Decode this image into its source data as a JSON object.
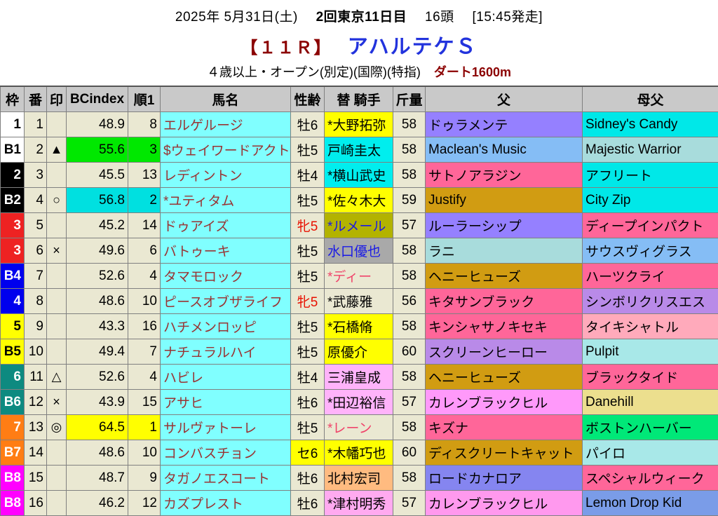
{
  "colors": {
    "title_red": "#8b0000",
    "title_blue": "#2233dd",
    "header_bg": "#c9c9c9",
    "cell_beige": "#eae8d2",
    "horse_cell_cyan": "#80ffff",
    "horse_text": "#993333",
    "border": "#808080"
  },
  "page": {
    "date_line": {
      "date": "2025年 5月31日(土)",
      "meeting": "2回東京11日目",
      "heads": "16頭",
      "start_time": "[15:45発走]"
    },
    "race_line": {
      "race_no": "【１１Ｒ】",
      "race_name": "アハルテケＳ"
    },
    "condition_line": {
      "conditions": "４歳以上・オープン(別定)(国際)(特指)",
      "track": "ダート1600m"
    }
  },
  "table": {
    "headers": [
      "枠",
      "番",
      "印",
      "BCindex",
      "順1",
      "馬名",
      "性齢",
      "替 騎手",
      "斤量",
      "父",
      "母父"
    ],
    "rows": [
      {
        "waku": {
          "text": "1",
          "bg": "#ffffff",
          "fg": "#000000"
        },
        "num": "1",
        "mark": "",
        "bcindex": {
          "value": "48.9",
          "bg": null
        },
        "rank": {
          "value": "8",
          "bg": null
        },
        "horse": "エルゲルージ",
        "sex_age": {
          "text": "牡6",
          "fg": null,
          "bg": null
        },
        "jockey": {
          "name": "*大野拓弥",
          "bg": "#ffff00",
          "fg": null
        },
        "weight": "58",
        "sire": {
          "name": "ドゥラメンテ",
          "bg": "#9580ff"
        },
        "damsire": {
          "name": "Sidney's Candy",
          "bg": "#00e8e8"
        }
      },
      {
        "waku": {
          "text": "B1",
          "bg": "#ffffff",
          "fg": "#000000"
        },
        "num": "2",
        "mark": "▲",
        "bcindex": {
          "value": "55.6",
          "bg": "#00e800"
        },
        "rank": {
          "value": "3",
          "bg": "#00e800"
        },
        "horse": "$ウェイワードアクト",
        "sex_age": {
          "text": "牡5",
          "fg": null,
          "bg": null
        },
        "jockey": {
          "name": "戸崎圭太",
          "bg": "#00eeee",
          "fg": null
        },
        "weight": "58",
        "sire": {
          "name": "Maclean's Music",
          "bg": "#85bdf5"
        },
        "damsire": {
          "name": "Majestic Warrior",
          "bg": "#a8dcdc"
        }
      },
      {
        "waku": {
          "text": "2",
          "bg": "#000000",
          "fg": "#ffffff"
        },
        "num": "3",
        "mark": "",
        "bcindex": {
          "value": "45.5",
          "bg": null
        },
        "rank": {
          "value": "13",
          "bg": null
        },
        "horse": "レディントン",
        "sex_age": {
          "text": "牡4",
          "fg": null,
          "bg": null
        },
        "jockey": {
          "name": "*横山武史",
          "bg": "#00eeee",
          "fg": null
        },
        "weight": "58",
        "sire": {
          "name": "サトノアラジン",
          "bg": "#ff6699"
        },
        "damsire": {
          "name": "アフリート",
          "bg": "#00e8e8"
        }
      },
      {
        "waku": {
          "text": "B2",
          "bg": "#000000",
          "fg": "#ffffff"
        },
        "num": "4",
        "mark": "○",
        "bcindex": {
          "value": "56.8",
          "bg": "#00e0e0"
        },
        "rank": {
          "value": "2",
          "bg": "#00e0e0"
        },
        "horse": "*ユティタム",
        "sex_age": {
          "text": "牡5",
          "fg": null,
          "bg": null
        },
        "jockey": {
          "name": "*佐々木大",
          "bg": "#ffff00",
          "fg": null
        },
        "weight": "59",
        "sire": {
          "name": "Justify",
          "bg": "#d19c12"
        },
        "damsire": {
          "name": "City Zip",
          "bg": "#00e8e8"
        }
      },
      {
        "waku": {
          "text": "3",
          "bg": "#ee2222",
          "fg": "#ffffff"
        },
        "num": "5",
        "mark": "",
        "bcindex": {
          "value": "45.2",
          "bg": null
        },
        "rank": {
          "value": "14",
          "bg": null
        },
        "horse": "ドゥアイズ",
        "sex_age": {
          "text": "牝5",
          "fg": "#e81000",
          "bg": null
        },
        "jockey": {
          "name": "*ルメール",
          "bg": "#b3b300",
          "fg": "#1919e6"
        },
        "weight": "57",
        "sire": {
          "name": "ルーラーシップ",
          "bg": "#9580ff"
        },
        "damsire": {
          "name": "ディープインパクト",
          "bg": "#ff6699"
        }
      },
      {
        "waku": {
          "text": "3",
          "bg": "#ee2222",
          "fg": "#ffffff"
        },
        "num": "6",
        "mark": "×",
        "bcindex": {
          "value": "49.6",
          "bg": null
        },
        "rank": {
          "value": "6",
          "bg": null
        },
        "horse": "バトゥーキ",
        "sex_age": {
          "text": "牡5",
          "fg": null,
          "bg": null
        },
        "jockey": {
          "name": "水口優也",
          "bg": "#a9a9a9",
          "fg": "#1919e6"
        },
        "weight": "58",
        "sire": {
          "name": "ラニ",
          "bg": "#a8dcdc"
        },
        "damsire": {
          "name": "サウスヴィグラス",
          "bg": "#85bdf5"
        }
      },
      {
        "waku": {
          "text": "B4",
          "bg": "#0000ee",
          "fg": "#ffffff"
        },
        "num": "7",
        "mark": "",
        "bcindex": {
          "value": "52.6",
          "bg": null
        },
        "rank": {
          "value": "4",
          "bg": null
        },
        "horse": "タマモロック",
        "sex_age": {
          "text": "牡5",
          "fg": null,
          "bg": null
        },
        "jockey": {
          "name": "*ディー",
          "bg": null,
          "fg": "#f0436a"
        },
        "weight": "58",
        "sire": {
          "name": "ヘニーヒューズ",
          "bg": "#d19c12"
        },
        "damsire": {
          "name": "ハーツクライ",
          "bg": "#ff6699"
        }
      },
      {
        "waku": {
          "text": "4",
          "bg": "#0000ee",
          "fg": "#ffffff"
        },
        "num": "8",
        "mark": "",
        "bcindex": {
          "value": "48.6",
          "bg": null
        },
        "rank": {
          "value": "10",
          "bg": null
        },
        "horse": "ピースオブザライフ",
        "sex_age": {
          "text": "牝5",
          "fg": "#e81000",
          "bg": null
        },
        "jockey": {
          "name": "*武藤雅",
          "bg": null,
          "fg": null
        },
        "weight": "56",
        "sire": {
          "name": "キタサンブラック",
          "bg": "#ff6699"
        },
        "damsire": {
          "name": "シンボリクリスエス",
          "bg": "#b98ae8"
        }
      },
      {
        "waku": {
          "text": "5",
          "bg": "#ffff00",
          "fg": "#000000"
        },
        "num": "9",
        "mark": "",
        "bcindex": {
          "value": "43.3",
          "bg": null
        },
        "rank": {
          "value": "16",
          "bg": null
        },
        "horse": "ハチメンロッピ",
        "sex_age": {
          "text": "牡5",
          "fg": null,
          "bg": null
        },
        "jockey": {
          "name": "*石橋脩",
          "bg": "#ffff00",
          "fg": null
        },
        "weight": "58",
        "sire": {
          "name": "キンシャサノキセキ",
          "bg": "#ff6699"
        },
        "damsire": {
          "name": "タイキシャトル",
          "bg": "#ffaabb"
        }
      },
      {
        "waku": {
          "text": "B5",
          "bg": "#ffff00",
          "fg": "#000000"
        },
        "num": "10",
        "mark": "",
        "bcindex": {
          "value": "49.4",
          "bg": null
        },
        "rank": {
          "value": "7",
          "bg": null
        },
        "horse": "ナチュラルハイ",
        "sex_age": {
          "text": "牡5",
          "fg": null,
          "bg": null
        },
        "jockey": {
          "name": "原優介",
          "bg": "#ffff00",
          "fg": null
        },
        "weight": "60",
        "sire": {
          "name": "スクリーンヒーロー",
          "bg": "#b98ae8"
        },
        "damsire": {
          "name": "Pulpit",
          "bg": "#a8e8e8"
        }
      },
      {
        "waku": {
          "text": "6",
          "bg": "#0d8a80",
          "fg": "#ffffff"
        },
        "num": "11",
        "mark": "△",
        "bcindex": {
          "value": "52.6",
          "bg": null
        },
        "rank": {
          "value": "4",
          "bg": null
        },
        "horse": "ハビレ",
        "sex_age": {
          "text": "牡4",
          "fg": null,
          "bg": null
        },
        "jockey": {
          "name": "三浦皇成",
          "bg": "#ffb3fa",
          "fg": null
        },
        "weight": "58",
        "sire": {
          "name": "ヘニーヒューズ",
          "bg": "#d19c12"
        },
        "damsire": {
          "name": "ブラックタイド",
          "bg": "#ff6699"
        }
      },
      {
        "waku": {
          "text": "B6",
          "bg": "#0d8a80",
          "fg": "#ffffff"
        },
        "num": "12",
        "mark": "×",
        "bcindex": {
          "value": "43.9",
          "bg": null
        },
        "rank": {
          "value": "15",
          "bg": null
        },
        "horse": "アサヒ",
        "sex_age": {
          "text": "牡6",
          "fg": null,
          "bg": null
        },
        "jockey": {
          "name": "*田辺裕信",
          "bg": "#ffb3fa",
          "fg": null
        },
        "weight": "57",
        "sire": {
          "name": "カレンブラックヒル",
          "bg": "#ff99fa"
        },
        "damsire": {
          "name": "Danehill",
          "bg": "#ecdf8e"
        }
      },
      {
        "waku": {
          "text": "7",
          "bg": "#ff7d14",
          "fg": "#ffffff"
        },
        "num": "13",
        "mark": "◎",
        "bcindex": {
          "value": "64.5",
          "bg": "#ffff00"
        },
        "rank": {
          "value": "1",
          "bg": "#ffff00"
        },
        "horse": "サルヴァトーレ",
        "sex_age": {
          "text": "牡5",
          "fg": null,
          "bg": null
        },
        "jockey": {
          "name": "*レーン",
          "bg": null,
          "fg": "#f0436a"
        },
        "weight": "58",
        "sire": {
          "name": "キズナ",
          "bg": "#ff6699"
        },
        "damsire": {
          "name": "ボストンハーバー",
          "bg": "#00e878"
        }
      },
      {
        "waku": {
          "text": "B7",
          "bg": "#ff7d14",
          "fg": "#ffffff"
        },
        "num": "14",
        "mark": "",
        "bcindex": {
          "value": "48.6",
          "bg": null
        },
        "rank": {
          "value": "10",
          "bg": null
        },
        "horse": "コンバスチョン",
        "sex_age": {
          "text": "セ6",
          "fg": null,
          "bg": "#ffff00"
        },
        "jockey": {
          "name": "*木幡巧也",
          "bg": "#ffff00",
          "fg": null
        },
        "weight": "60",
        "sire": {
          "name": "ディスクリートキャット",
          "bg": "#d19c12"
        },
        "damsire": {
          "name": "パイロ",
          "bg": "#a8e8e8"
        }
      },
      {
        "waku": {
          "text": "B8",
          "bg": "#ff00ff",
          "fg": "#ffffff"
        },
        "num": "15",
        "mark": "",
        "bcindex": {
          "value": "48.7",
          "bg": null
        },
        "rank": {
          "value": "9",
          "bg": null
        },
        "horse": "タガノエスコート",
        "sex_age": {
          "text": "牡6",
          "fg": null,
          "bg": null
        },
        "jockey": {
          "name": "北村宏司",
          "bg": "#ffbb80",
          "fg": null
        },
        "weight": "58",
        "sire": {
          "name": "ロードカナロア",
          "bg": "#8585f0"
        },
        "damsire": {
          "name": "スペシャルウィーク",
          "bg": "#ff6699"
        }
      },
      {
        "waku": {
          "text": "B8",
          "bg": "#ff00ff",
          "fg": "#ffffff"
        },
        "num": "16",
        "mark": "",
        "bcindex": {
          "value": "46.2",
          "bg": null
        },
        "rank": {
          "value": "12",
          "bg": null
        },
        "horse": "カズプレスト",
        "sex_age": {
          "text": "牡6",
          "fg": null,
          "bg": null
        },
        "jockey": {
          "name": "*津村明秀",
          "bg": "#ffaaf0",
          "fg": null
        },
        "weight": "57",
        "sire": {
          "name": "カレンブラックヒル",
          "bg": "#ff99ee"
        },
        "damsire": {
          "name": "Lemon Drop Kid",
          "bg": "#7a9ce8"
        }
      }
    ]
  }
}
